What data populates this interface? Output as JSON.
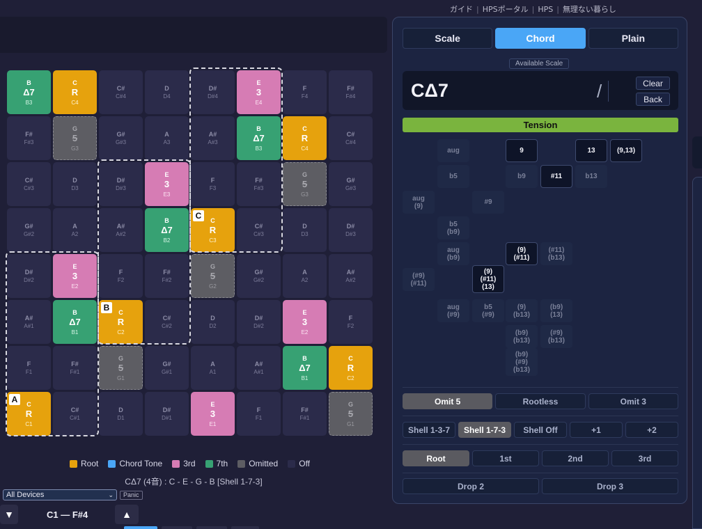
{
  "nav": {
    "items": [
      "ガイド",
      "HPSポータル",
      "HPS",
      "無理ない暮らし"
    ]
  },
  "grid": {
    "rows": [
      [
        {
          "n": "B",
          "i": "Δ7",
          "o": "B3",
          "t": "seventh"
        },
        {
          "n": "C",
          "i": "R",
          "o": "C4",
          "t": "root"
        },
        {
          "n": "C#",
          "i": "",
          "o": "C#4",
          "t": "off"
        },
        {
          "n": "D",
          "i": "",
          "o": "D4",
          "t": "off"
        },
        {
          "n": "D#",
          "i": "",
          "o": "D#4",
          "t": "off"
        },
        {
          "n": "E",
          "i": "3",
          "o": "E4",
          "t": "third"
        },
        {
          "n": "F",
          "i": "",
          "o": "F4",
          "t": "off"
        },
        {
          "n": "F#",
          "i": "",
          "o": "F#4",
          "t": "off"
        }
      ],
      [
        {
          "n": "F#",
          "i": "",
          "o": "F#3",
          "t": "off"
        },
        {
          "n": "G",
          "i": "5",
          "o": "G3",
          "t": "omitted"
        },
        {
          "n": "G#",
          "i": "",
          "o": "G#3",
          "t": "off"
        },
        {
          "n": "A",
          "i": "",
          "o": "A3",
          "t": "off"
        },
        {
          "n": "A#",
          "i": "",
          "o": "A#3",
          "t": "off"
        },
        {
          "n": "B",
          "i": "Δ7",
          "o": "B3",
          "t": "seventh"
        },
        {
          "n": "C",
          "i": "R",
          "o": "C4",
          "t": "root"
        },
        {
          "n": "C#",
          "i": "",
          "o": "C#4",
          "t": "off"
        }
      ],
      [
        {
          "n": "C#",
          "i": "",
          "o": "C#3",
          "t": "off"
        },
        {
          "n": "D",
          "i": "",
          "o": "D3",
          "t": "off"
        },
        {
          "n": "D#",
          "i": "",
          "o": "D#3",
          "t": "off"
        },
        {
          "n": "E",
          "i": "3",
          "o": "E3",
          "t": "third"
        },
        {
          "n": "F",
          "i": "",
          "o": "F3",
          "t": "off"
        },
        {
          "n": "F#",
          "i": "",
          "o": "F#3",
          "t": "off"
        },
        {
          "n": "G",
          "i": "5",
          "o": "G3",
          "t": "omitted"
        },
        {
          "n": "G#",
          "i": "",
          "o": "G#3",
          "t": "off"
        }
      ],
      [
        {
          "n": "G#",
          "i": "",
          "o": "G#2",
          "t": "off"
        },
        {
          "n": "A",
          "i": "",
          "o": "A2",
          "t": "off"
        },
        {
          "n": "A#",
          "i": "",
          "o": "A#2",
          "t": "off"
        },
        {
          "n": "B",
          "i": "Δ7",
          "o": "B2",
          "t": "seventh"
        },
        {
          "n": "C",
          "i": "R",
          "o": "C3",
          "t": "root",
          "badge": "C"
        },
        {
          "n": "C#",
          "i": "",
          "o": "C#3",
          "t": "off"
        },
        {
          "n": "D",
          "i": "",
          "o": "D3",
          "t": "off"
        },
        {
          "n": "D#",
          "i": "",
          "o": "D#3",
          "t": "off"
        }
      ],
      [
        {
          "n": "D#",
          "i": "",
          "o": "D#2",
          "t": "off"
        },
        {
          "n": "E",
          "i": "3",
          "o": "E2",
          "t": "third"
        },
        {
          "n": "F",
          "i": "",
          "o": "F2",
          "t": "off"
        },
        {
          "n": "F#",
          "i": "",
          "o": "F#2",
          "t": "off"
        },
        {
          "n": "G",
          "i": "5",
          "o": "G2",
          "t": "omitted"
        },
        {
          "n": "G#",
          "i": "",
          "o": "G#2",
          "t": "off"
        },
        {
          "n": "A",
          "i": "",
          "o": "A2",
          "t": "off"
        },
        {
          "n": "A#",
          "i": "",
          "o": "A#2",
          "t": "off"
        }
      ],
      [
        {
          "n": "A#",
          "i": "",
          "o": "A#1",
          "t": "off"
        },
        {
          "n": "B",
          "i": "Δ7",
          "o": "B1",
          "t": "seventh"
        },
        {
          "n": "C",
          "i": "R",
          "o": "C2",
          "t": "root",
          "badge": "B"
        },
        {
          "n": "C#",
          "i": "",
          "o": "C#2",
          "t": "off"
        },
        {
          "n": "D",
          "i": "",
          "o": "D2",
          "t": "off"
        },
        {
          "n": "D#",
          "i": "",
          "o": "D#2",
          "t": "off"
        },
        {
          "n": "E",
          "i": "3",
          "o": "E2",
          "t": "third"
        },
        {
          "n": "F",
          "i": "",
          "o": "F2",
          "t": "off"
        }
      ],
      [
        {
          "n": "F",
          "i": "",
          "o": "F1",
          "t": "off"
        },
        {
          "n": "F#",
          "i": "",
          "o": "F#1",
          "t": "off"
        },
        {
          "n": "G",
          "i": "5",
          "o": "G1",
          "t": "omitted"
        },
        {
          "n": "G#",
          "i": "",
          "o": "G#1",
          "t": "off"
        },
        {
          "n": "A",
          "i": "",
          "o": "A1",
          "t": "off"
        },
        {
          "n": "A#",
          "i": "",
          "o": "A#1",
          "t": "off"
        },
        {
          "n": "B",
          "i": "Δ7",
          "o": "B1",
          "t": "seventh"
        },
        {
          "n": "C",
          "i": "R",
          "o": "C2",
          "t": "root"
        }
      ],
      [
        {
          "n": "C",
          "i": "R",
          "o": "C1",
          "t": "root",
          "badge": "A"
        },
        {
          "n": "C#",
          "i": "",
          "o": "C#1",
          "t": "off"
        },
        {
          "n": "D",
          "i": "",
          "o": "D1",
          "t": "off"
        },
        {
          "n": "D#",
          "i": "",
          "o": "D#1",
          "t": "off"
        },
        {
          "n": "E",
          "i": "3",
          "o": "E1",
          "t": "third"
        },
        {
          "n": "F",
          "i": "",
          "o": "F1",
          "t": "off"
        },
        {
          "n": "F#",
          "i": "",
          "o": "F#1",
          "t": "off"
        },
        {
          "n": "G",
          "i": "5",
          "o": "G1",
          "t": "omitted"
        }
      ]
    ]
  },
  "legend": [
    {
      "label": "Root",
      "color": "#e6a20d"
    },
    {
      "label": "Chord Tone",
      "color": "#4aa6f6"
    },
    {
      "label": "3rd",
      "color": "#d67cb4"
    },
    {
      "label": "7th",
      "color": "#37a173"
    },
    {
      "label": "Omitted",
      "color": "#5d5d63"
    },
    {
      "label": "Off",
      "color": "#2b2b4a"
    }
  ],
  "chord_info": "CΔ7 (4音) : C - E - G - B [Shell 1-7-3]",
  "device": {
    "selected": "All Devices",
    "panic": "Panic"
  },
  "octave": {
    "down": "▼",
    "up": "▲",
    "range": "C1 — F#4"
  },
  "panel": {
    "tabs": [
      {
        "label": "Scale",
        "active": false
      },
      {
        "label": "Chord",
        "active": true
      },
      {
        "label": "Plain",
        "active": false
      }
    ],
    "available_scale": "Available Scale",
    "chord_name": "CΔ7",
    "slash": "/",
    "clear": "Clear",
    "back": "Back",
    "tension_label": "Tension",
    "tensions": [
      {
        "label": "aug",
        "active": false
      },
      {
        "label": "9",
        "active": true
      },
      {
        "label": "13",
        "active": true
      },
      {
        "label": "(9,13)",
        "active": true
      },
      {
        "label": "b5",
        "active": false
      },
      {
        "label": "b9",
        "active": false
      },
      {
        "label": "#11",
        "active": true
      },
      {
        "label": "b13",
        "active": false
      },
      {
        "label": "aug\n(9)",
        "active": false
      },
      {
        "label": "#9",
        "active": false
      },
      {
        "label": "b5\n(b9)",
        "active": false
      },
      {
        "label": "aug\n(b9)",
        "active": false
      },
      {
        "label": "(9)\n(#11)",
        "active": true
      },
      {
        "label": "(#11)\n(b13)",
        "active": false
      },
      {
        "label": "(#9)\n(#11)",
        "active": false
      },
      {
        "label": "(9)\n(#11)\n(13)",
        "active": true
      },
      {
        "label": "aug\n(#9)",
        "active": false
      },
      {
        "label": "b5\n(#9)",
        "active": false
      },
      {
        "label": "(9)\n(b13)",
        "active": false
      },
      {
        "label": "(b9)\n(13)",
        "active": false
      },
      {
        "label": "(b9)\n(b13)",
        "active": false
      },
      {
        "label": "(#9)\n(b13)",
        "active": false
      },
      {
        "label": "(b9)\n(#9)\n(b13)",
        "active": false
      }
    ],
    "omit": [
      {
        "label": "Omit 5",
        "active": true
      },
      {
        "label": "Rootless",
        "active": false
      },
      {
        "label": "Omit 3",
        "active": false
      }
    ],
    "shell": [
      {
        "label": "Shell 1-3-7",
        "active": false
      },
      {
        "label": "Shell 1-7-3",
        "active": true
      },
      {
        "label": "Shell Off",
        "active": false
      },
      {
        "label": "+1",
        "active": false
      },
      {
        "label": "+2",
        "active": false
      }
    ],
    "inversion": [
      {
        "label": "Root",
        "active": true
      },
      {
        "label": "1st",
        "active": false
      },
      {
        "label": "2nd",
        "active": false
      },
      {
        "label": "3rd",
        "active": false
      }
    ],
    "drop": [
      {
        "label": "Drop 2",
        "active": false
      },
      {
        "label": "Drop 3",
        "active": false
      }
    ]
  }
}
